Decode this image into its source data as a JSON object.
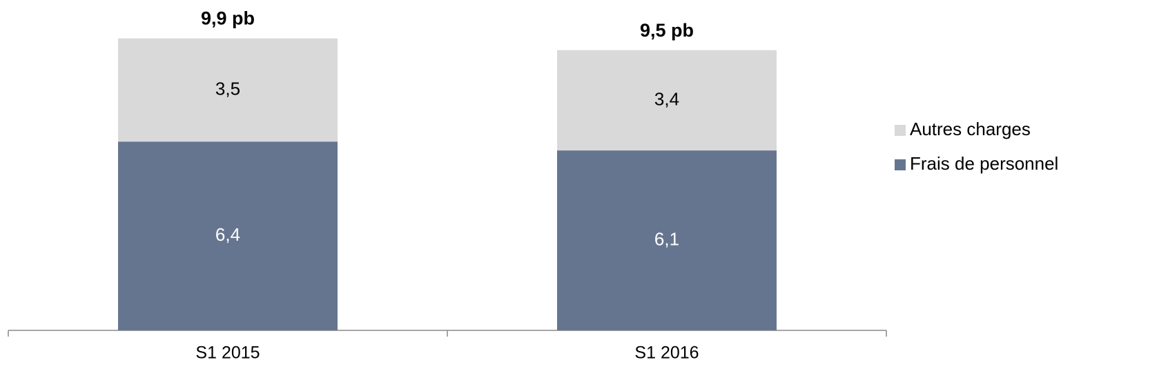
{
  "chart_data": {
    "type": "stacked_bar",
    "categories": [
      "S1 2015",
      "S1 2016"
    ],
    "series": [
      {
        "name": "Frais de personnel",
        "color": "#66758f",
        "label_color": "#ffffff",
        "values": [
          6.4,
          6.1
        ],
        "value_labels": [
          "6,4",
          "6,1"
        ]
      },
      {
        "name": "Autres charges",
        "color": "#d9d9d9",
        "label_color": "#000000",
        "values": [
          3.5,
          3.4
        ],
        "value_labels": [
          "3,5",
          "3,4"
        ]
      }
    ],
    "totals": [
      9.9,
      9.5
    ],
    "total_labels": [
      "9,9 pb",
      "9,5 pb"
    ],
    "ylim": [
      0,
      11.2
    ],
    "legend": "right"
  }
}
